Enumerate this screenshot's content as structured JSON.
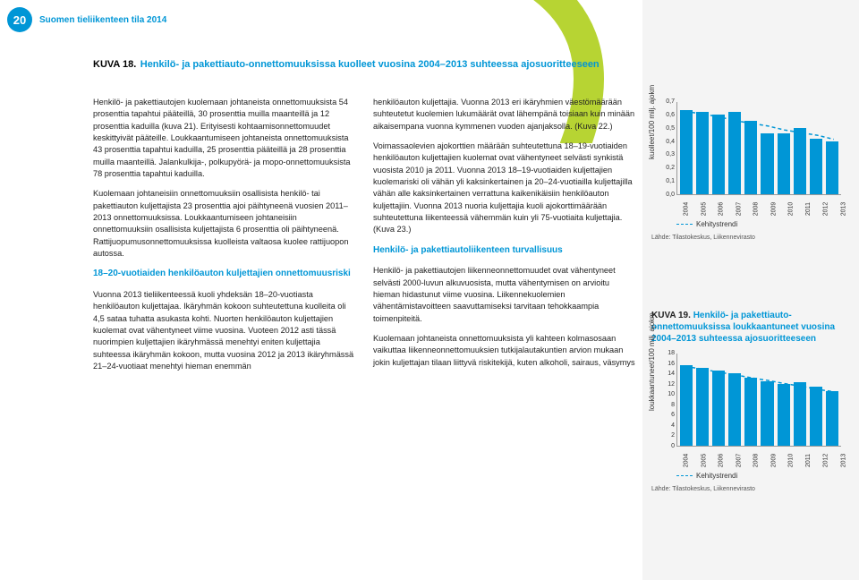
{
  "header": {
    "page_number": "20",
    "doc_title": "Suomen tieliikenteen tila 2014"
  },
  "kuva18": {
    "label": "KUVA 18.",
    "title": "Henkilö- ja pakettiauto-onnettomuuksissa kuolleet vuosina 2004–2013 suhteessa ajosuoritteeseen"
  },
  "col1": {
    "p1": "Henkilö- ja pakettiautojen kuolemaan johtaneista onnettomuuksista 54 prosenttia tapahtui pääteillä, 30 prosenttia muilla maanteillä ja 12 prosenttia kaduilla (kuva 21). Erityisesti kohtaamisonnettomuudet keskittyivät pääteille. Loukkaantumiseen johtaneista onnettomuuksista 43 prosenttia tapahtui kaduilla, 25 prosenttia pääteillä ja 28 prosenttia muilla maanteillä. Jalankulkija-, polkupyörä- ja mopo-onnettomuuksista 78 prosenttia tapahtui kaduilla.",
    "p2": "Kuolemaan johtaneisiin onnettomuuksiin osallisista henkilö- tai pakettiauton kuljettajista 23 prosenttia ajoi päihtyneenä vuosien 2011–2013 onnettomuuksissa. Loukkaantumiseen johtaneisiin onnettomuuksiin osallisista kuljettajista 6 prosenttia oli päihtyneenä. Rattijuopumusonnettomuuksissa kuolleista valtaosa kuolee rattijuopon autossa.",
    "h1": "18–20-vuotiaiden henkilöauton kuljettajien onnettomuusriski",
    "p3": "Vuonna 2013 tieliikenteessä kuoli yhdeksän 18–20-vuotiasta henkilöauton kuljettajaa. Ikäryhmän kokoon suhteutettuna kuolleita oli 4,5 sataa tuhatta asukasta kohti. Nuorten henkilöauton kuljettajien kuolemat ovat vähentyneet viime vuosina. Vuoteen 2012 asti tässä nuorimpien kuljettajien ikäryhmässä menehtyi eniten kuljettajia suhteessa ikäryhmän kokoon, mutta vuosina 2012 ja 2013 ikäryhmässä 21–24-vuotiaat menehtyi hieman enemmän"
  },
  "col2": {
    "p1": "henkilöauton kuljettajia. Vuonna 2013 eri ikäryhmien väestömäärään suhteutetut kuolemien lukumäärät ovat lähempänä toisiaan kuin minään aikaisempana vuonna kymmenen vuoden ajanjaksolla. (Kuva 22.)",
    "p2": "Voimassaolevien ajokorttien määrään suhteutettuna 18–19-vuotiaiden henkilöauton kuljettajien kuolemat ovat vähentyneet selvästi synkistä vuosista 2010 ja 2011. Vuonna 2013 18–19-vuotiaiden kuljettajien kuolemariski oli vähän yli kaksinkertainen ja 20–24-vuotiailla kuljettajilla vähän alle kaksinkertainen verrattuna kaikenikäisiin henkilöauton kuljettajiin. Vuonna 2013 nuoria kuljettajia kuoli ajokorttimäärään suhteutettuna liikenteessä vähemmän kuin yli 75-vuotiaita kuljettajia. (Kuva 23.)",
    "h1": "Henkilö- ja pakettiautoliikenteen turvallisuus",
    "p3": "Henkilö- ja pakettiautojen liikenneonnettomuudet ovat vähentyneet selvästi 2000-luvun alkuvuosista, mutta vähentymisen on arvioitu hieman hidastunut viime vuosina. Liikennekuolemien vähentämistavoitteen saavuttamiseksi tarvitaan tehokkaampia toimenpiteitä.",
    "p4": "Kuolemaan johtaneista onnettomuuksista yli kahteen kolmasosaan vaikuttaa liikenneonnettomuuksien tutkijalautakuntien arvion mukaan jokin kuljettajan tilaan liittyvä riskitekijä, kuten alkoholi, sairaus, väsymys"
  },
  "chart1": {
    "y_label": "kuolleet/100 milj. ajokm",
    "y_ticks": [
      "0,7",
      "0,6",
      "0,5",
      "0,4",
      "0,3",
      "0,2",
      "0,1",
      "0,0"
    ],
    "y_max": 0.7,
    "years": [
      "2004",
      "2005",
      "2006",
      "2007",
      "2008",
      "2009",
      "2010",
      "2011",
      "2012",
      "2013"
    ],
    "values": [
      0.63,
      0.62,
      0.6,
      0.62,
      0.55,
      0.46,
      0.46,
      0.5,
      0.42,
      0.4
    ],
    "trend": [
      0.63,
      0.61,
      0.59,
      0.56,
      0.54,
      0.52,
      0.49,
      0.47,
      0.45,
      0.42
    ],
    "bar_color": "#0096d6",
    "legend": "Kehitystrendi",
    "source": "Lähde: Tilastokeskus, Liikennevirasto"
  },
  "kuva19": {
    "label": "KUVA 19.",
    "title": "Henkilö- ja pakettiauto-onnettomuuksissa loukkaantuneet vuosina 2004–2013 suhteessa ajosuoritteeseen"
  },
  "chart2": {
    "y_label": "loukkaantuneet/100 milj. ajokm",
    "y_ticks": [
      "18",
      "16",
      "14",
      "12",
      "10",
      "8",
      "6",
      "4",
      "2",
      "0"
    ],
    "y_max": 18,
    "years": [
      "2004",
      "2005",
      "2006",
      "2007",
      "2008",
      "2009",
      "2010",
      "2011",
      "2012",
      "2013"
    ],
    "values": [
      15.5,
      15,
      14.5,
      14,
      13.2,
      12.5,
      12,
      12.3,
      11.5,
      10.5
    ],
    "trend": [
      15.5,
      15,
      14.4,
      13.9,
      13.3,
      12.8,
      12.2,
      11.7,
      11.1,
      10.6
    ],
    "bar_color": "#0096d6",
    "legend": "Kehitystrendi",
    "source": "Lähde: Tilastokeskus, Liikennevirasto"
  }
}
